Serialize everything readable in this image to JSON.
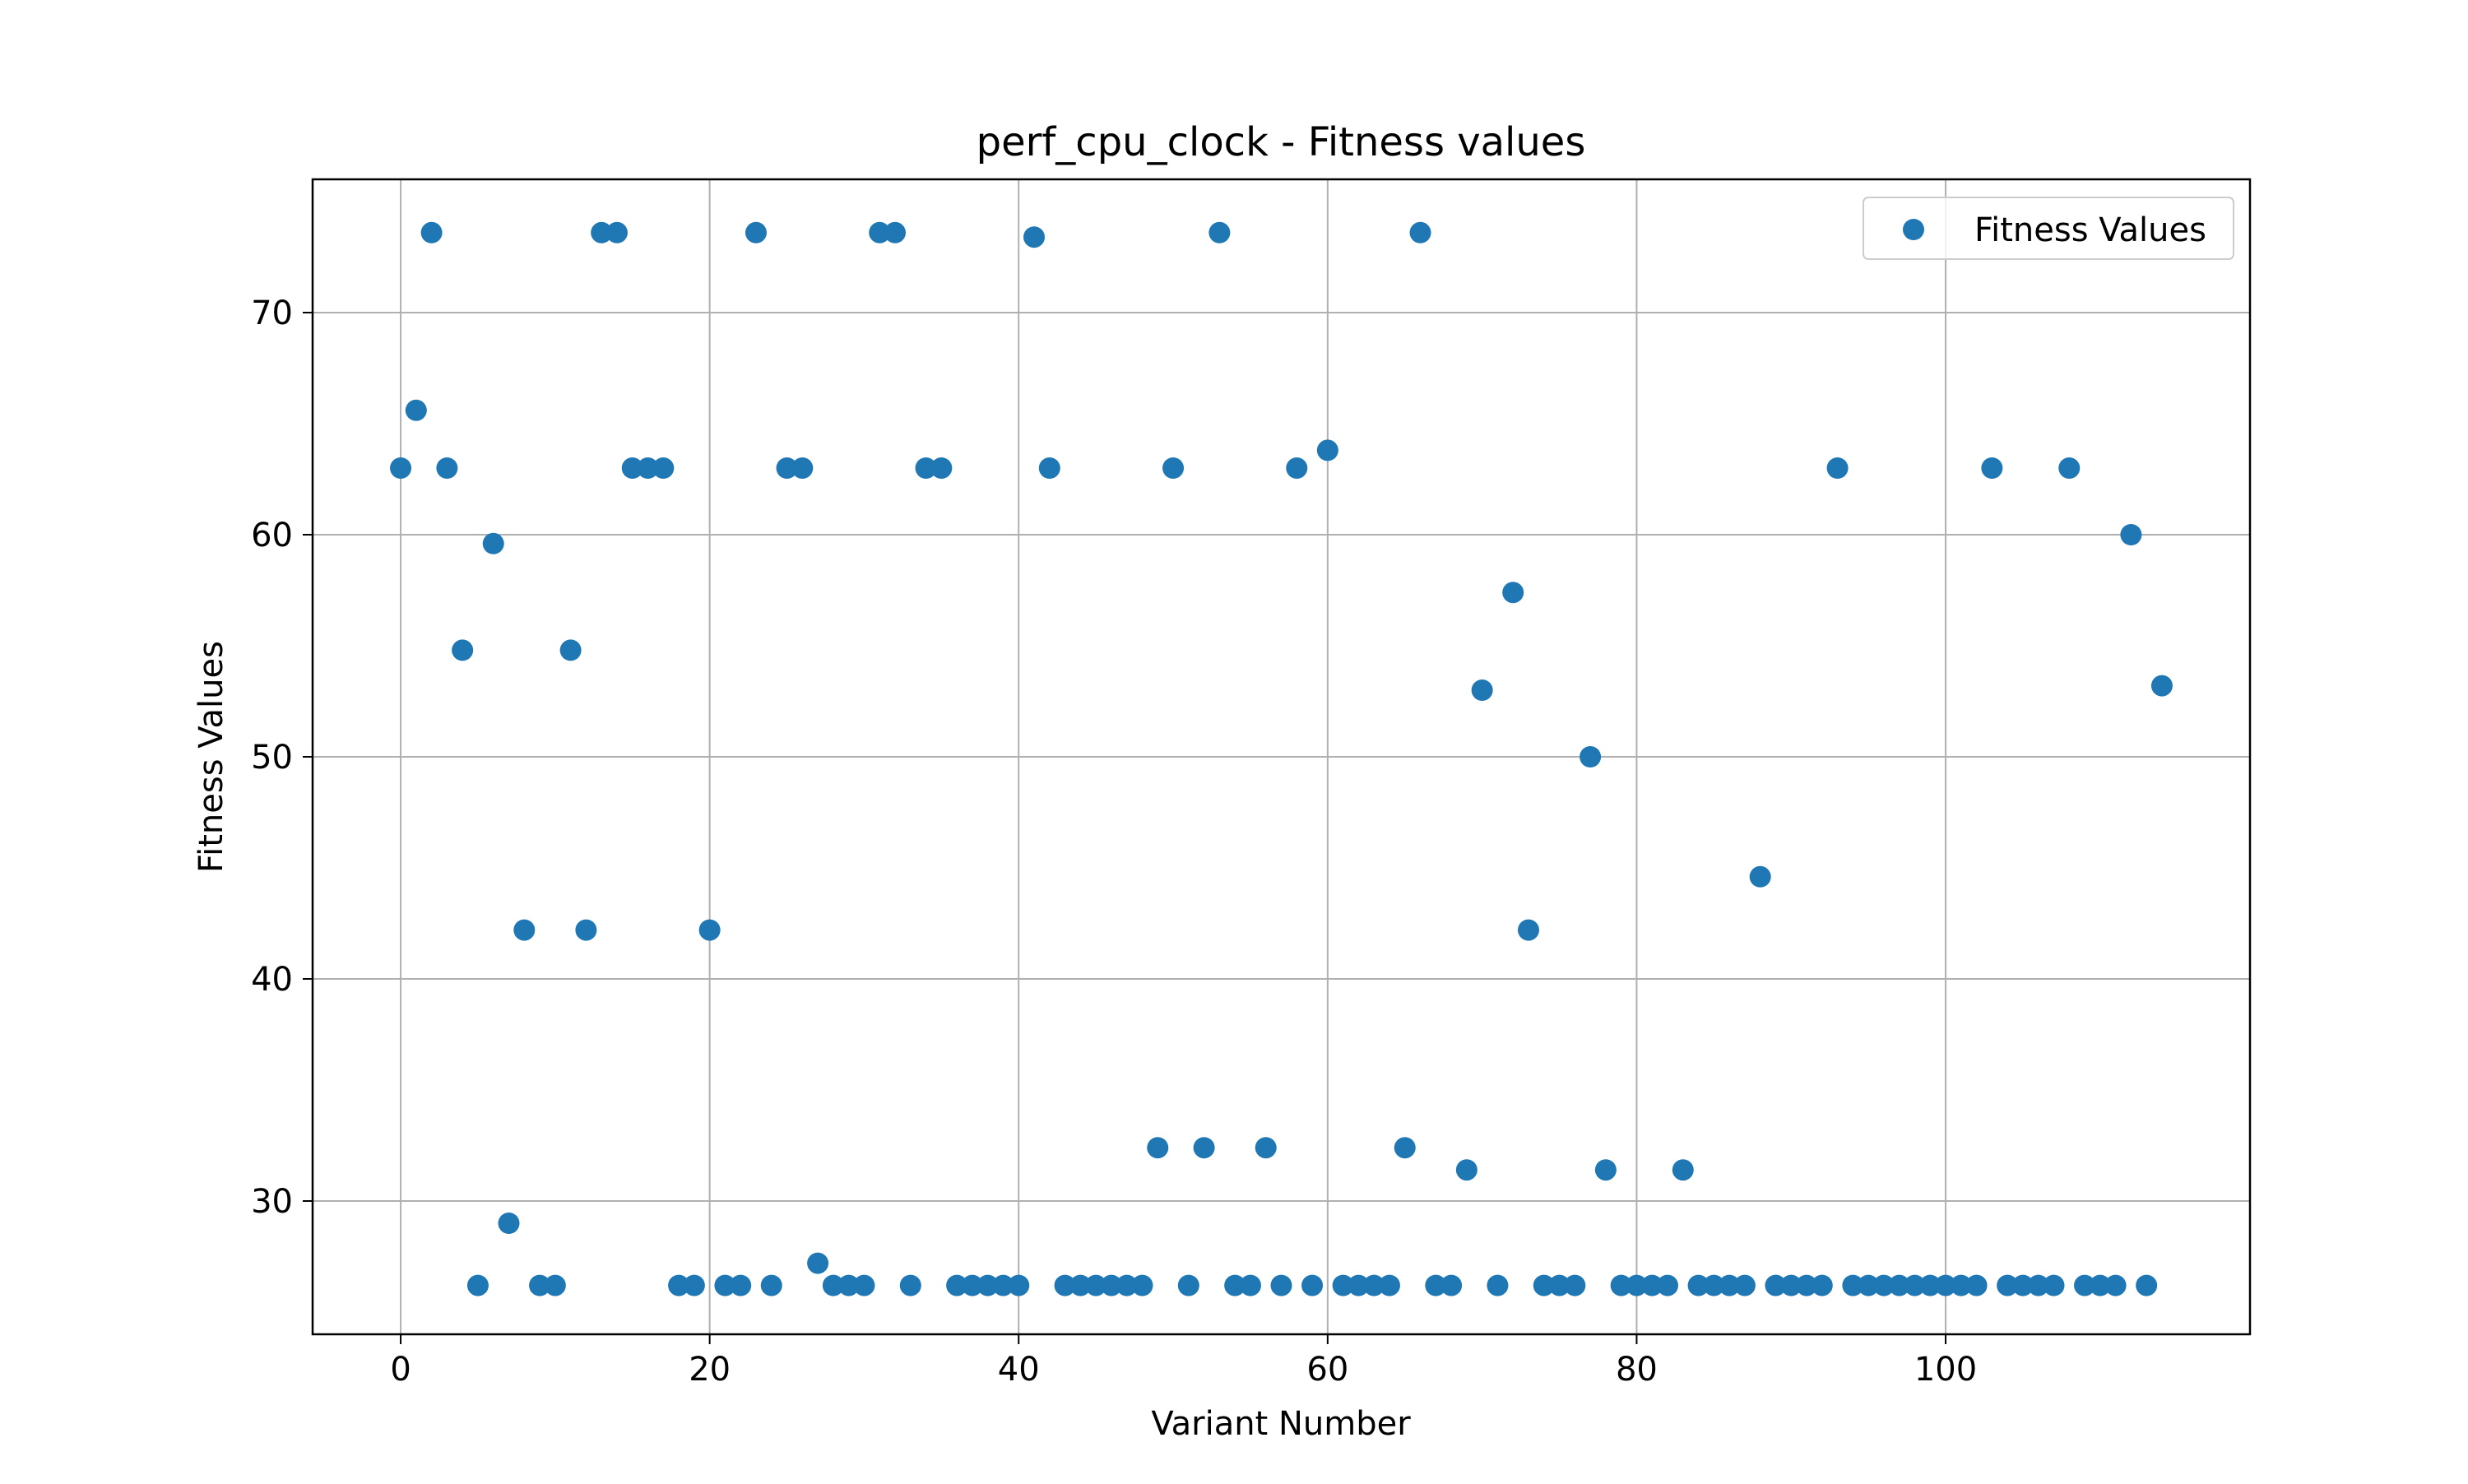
{
  "chart_data": {
    "type": "scatter",
    "title": "perf_cpu_clock - Fitness values",
    "xlabel": "Variant Number",
    "ylabel": "Fitness Values",
    "xlim": [
      -5.7,
      119.7
    ],
    "ylim": [
      24,
      76
    ],
    "xticks": [
      0,
      20,
      40,
      60,
      80,
      100
    ],
    "yticks": [
      30,
      40,
      50,
      60,
      70
    ],
    "grid": true,
    "legend_position": "top-right",
    "colors": {
      "points": "#1f77b4",
      "grid": "#b0b0b0",
      "axes": "#000000"
    },
    "series": [
      {
        "name": "Fitness Values",
        "x": [
          0,
          1,
          2,
          3,
          4,
          5,
          6,
          7,
          8,
          9,
          10,
          11,
          12,
          13,
          14,
          15,
          16,
          17,
          18,
          19,
          20,
          21,
          22,
          23,
          24,
          25,
          26,
          27,
          28,
          29,
          30,
          31,
          32,
          33,
          34,
          35,
          36,
          37,
          38,
          39,
          40,
          41,
          42,
          43,
          44,
          45,
          46,
          47,
          48,
          49,
          50,
          51,
          52,
          53,
          54,
          55,
          56,
          57,
          58,
          59,
          60,
          61,
          62,
          63,
          64,
          65,
          66,
          67,
          68,
          69,
          70,
          71,
          72,
          73,
          74,
          75,
          76,
          77,
          78,
          79,
          80,
          81,
          82,
          83,
          84,
          85,
          86,
          87,
          88,
          89,
          90,
          91,
          92,
          93,
          94,
          95,
          96,
          97,
          98,
          99,
          100,
          101,
          102,
          103,
          104,
          105,
          106,
          107,
          108,
          109,
          110,
          111,
          112,
          113,
          114
        ],
        "y": [
          63.0,
          65.6,
          73.6,
          63.0,
          54.8,
          26.2,
          59.6,
          29.0,
          42.2,
          26.2,
          26.2,
          54.8,
          42.2,
          73.6,
          73.6,
          63.0,
          63.0,
          63.0,
          26.2,
          26.2,
          42.2,
          26.2,
          26.2,
          73.6,
          26.2,
          63.0,
          63.0,
          27.2,
          26.2,
          26.2,
          26.2,
          73.6,
          73.6,
          26.2,
          63.0,
          63.0,
          26.2,
          26.2,
          26.2,
          26.2,
          26.2,
          73.4,
          63.0,
          26.2,
          26.2,
          26.2,
          26.2,
          26.2,
          26.2,
          32.4,
          63.0,
          26.2,
          32.4,
          73.6,
          26.2,
          26.2,
          32.4,
          26.2,
          63.0,
          26.2,
          63.8,
          26.2,
          26.2,
          26.2,
          26.2,
          32.4,
          73.6,
          26.2,
          26.2,
          31.4,
          53.0,
          26.2,
          57.4,
          42.2,
          26.2,
          26.2,
          26.2,
          50.0,
          31.4,
          26.2,
          26.2,
          26.2,
          26.2,
          31.4,
          26.2,
          26.2,
          26.2,
          26.2,
          44.6,
          26.2,
          26.2,
          26.2,
          26.2,
          63.0,
          26.2,
          26.2,
          26.2,
          26.2,
          26.2,
          26.2,
          26.2,
          26.2,
          26.2,
          63.0,
          26.2,
          26.2,
          26.2,
          26.2,
          63.0,
          26.2,
          26.2,
          26.2,
          60.0,
          26.2,
          53.2
        ]
      }
    ]
  }
}
